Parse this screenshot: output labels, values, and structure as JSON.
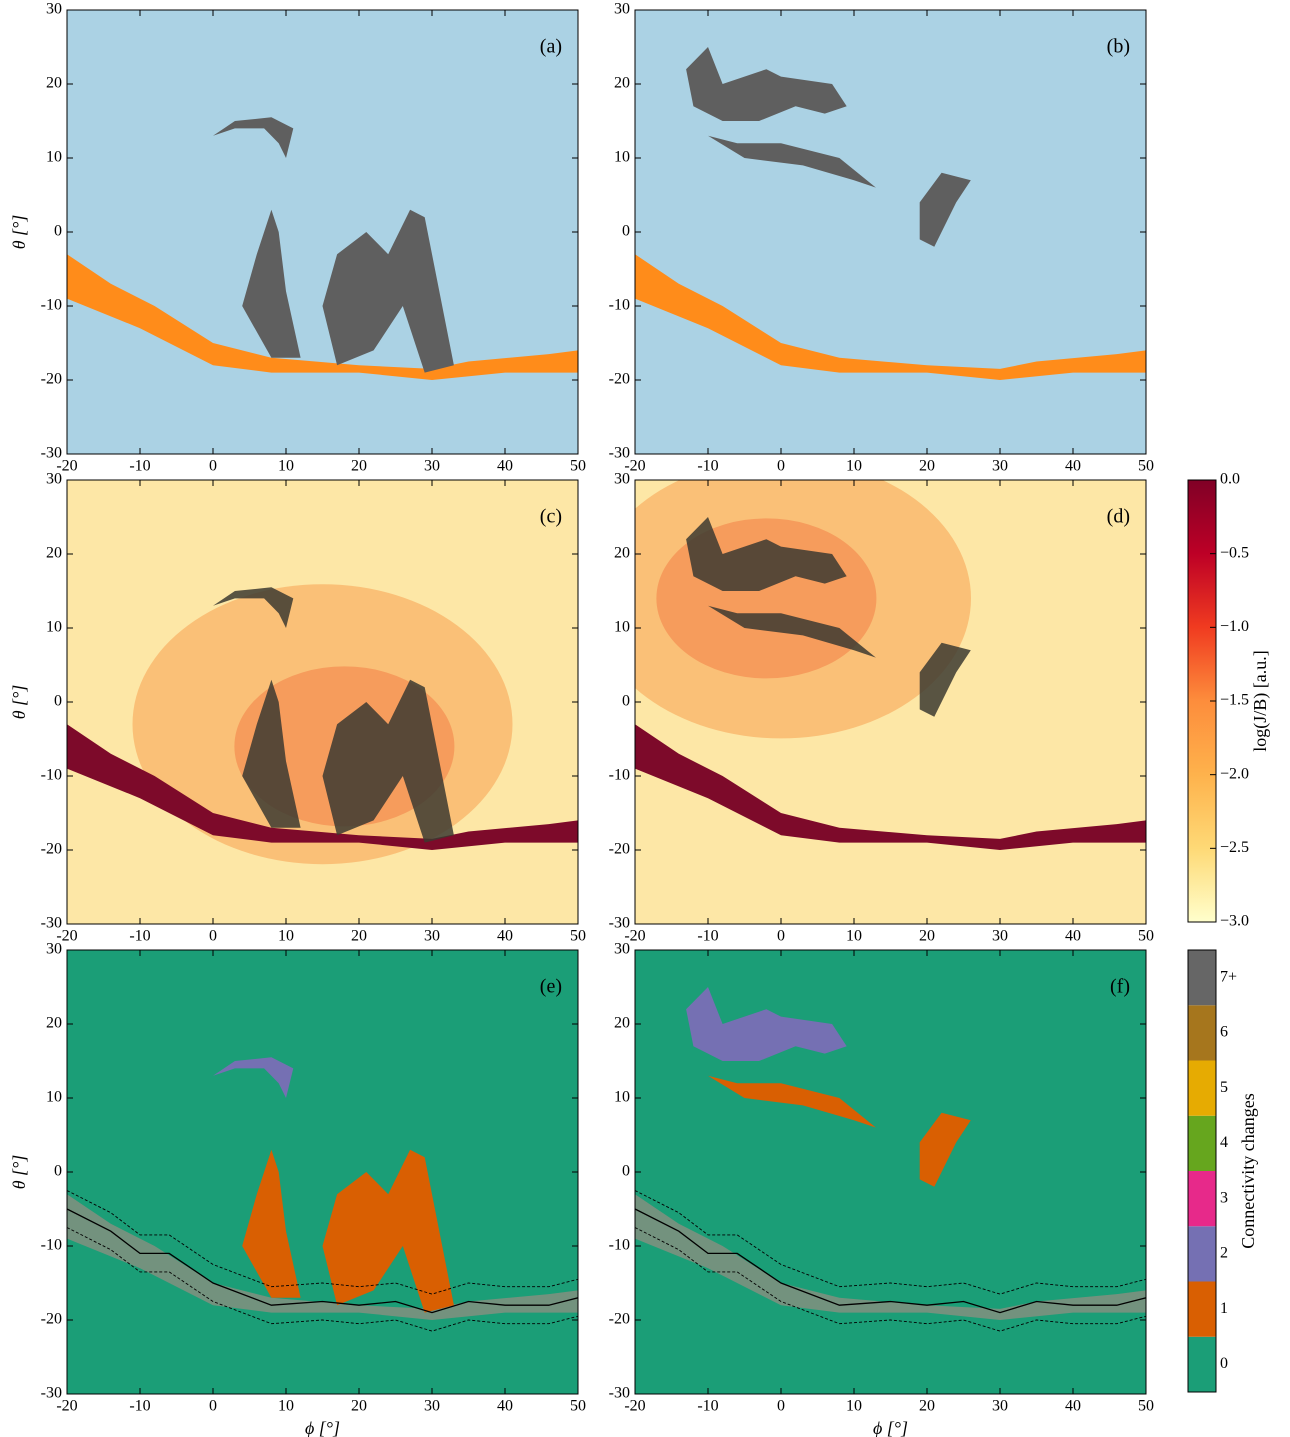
{
  "chart_data": [
    {
      "type": "image",
      "panel_label": "(a)",
      "background": "#abd2e4",
      "xlim": [
        -20,
        50
      ],
      "ylim": [
        -30,
        30
      ],
      "xticks": [
        -20,
        -10,
        0,
        10,
        20,
        30,
        40,
        50
      ],
      "yticks": [
        -30,
        -20,
        -10,
        0,
        10,
        20,
        30
      ],
      "ylabel": "θ [°]"
    },
    {
      "type": "image",
      "panel_label": "(b)",
      "background": "#abd2e4",
      "xlim": [
        -20,
        50
      ],
      "ylim": [
        -30,
        30
      ],
      "xticks": [
        -20,
        -10,
        0,
        10,
        20,
        30,
        40,
        50
      ],
      "yticks": [
        -30,
        -20,
        -10,
        0,
        10,
        20,
        30
      ]
    },
    {
      "type": "image",
      "panel_label": "(c)",
      "background": "#fde7a6",
      "xlim": [
        -20,
        50
      ],
      "ylim": [
        -30,
        30
      ],
      "xticks": [
        -20,
        -10,
        0,
        10,
        20,
        30,
        40,
        50
      ],
      "yticks": [
        -30,
        -20,
        -10,
        0,
        10,
        20,
        30
      ],
      "ylabel": "θ [°]"
    },
    {
      "type": "image",
      "panel_label": "(d)",
      "background": "#fde7a6",
      "xlim": [
        -20,
        50
      ],
      "ylim": [
        -30,
        30
      ],
      "xticks": [
        -20,
        -10,
        0,
        10,
        20,
        30,
        40,
        50
      ],
      "yticks": [
        -30,
        -20,
        -10,
        0,
        10,
        20,
        30
      ]
    },
    {
      "type": "image",
      "panel_label": "(e)",
      "background": "#1b9e77",
      "xlim": [
        -20,
        50
      ],
      "ylim": [
        -30,
        30
      ],
      "xticks": [
        -20,
        -10,
        0,
        10,
        20,
        30,
        40,
        50
      ],
      "yticks": [
        -30,
        -20,
        -10,
        0,
        10,
        20,
        30
      ],
      "ylabel": "θ [°]",
      "xlabel": "ϕ [°]"
    },
    {
      "type": "image",
      "panel_label": "(f)",
      "background": "#1b9e77",
      "xlim": [
        -20,
        50
      ],
      "ylim": [
        -30,
        30
      ],
      "xticks": [
        -20,
        -10,
        0,
        10,
        20,
        30,
        40,
        50
      ],
      "yticks": [
        -30,
        -20,
        -10,
        0,
        10,
        20,
        30
      ],
      "xlabel": "ϕ [°]"
    },
    {
      "type": "colorbar",
      "label": "log(J/B) [a.u.]",
      "lim": [
        -3,
        0
      ],
      "colors": [
        "#ffffcc",
        "#fed976",
        "#feb24c",
        "#fd8d3c",
        "#f03b20",
        "#bd0026",
        "#800026"
      ],
      "ticks": [
        {
          "value": 0,
          "label": "0.0"
        },
        {
          "value": -0.5,
          "label": "−0.5"
        },
        {
          "value": -1,
          "label": "−1.0"
        },
        {
          "value": -1.5,
          "label": "−1.5"
        },
        {
          "value": -2,
          "label": "−2.0"
        },
        {
          "value": -2.5,
          "label": "−2.5"
        },
        {
          "value": -3,
          "label": "−3.0"
        }
      ]
    },
    {
      "type": "categorical-colorbar",
      "label": "Connectivity changes",
      "categories": [
        "0",
        "1",
        "2",
        "3",
        "4",
        "5",
        "6",
        "7+"
      ],
      "colors": [
        "#1b9e77",
        "#d95f02",
        "#7570b3",
        "#e7298a",
        "#66a61e",
        "#e6ab02",
        "#a6761d",
        "#666666"
      ]
    }
  ]
}
